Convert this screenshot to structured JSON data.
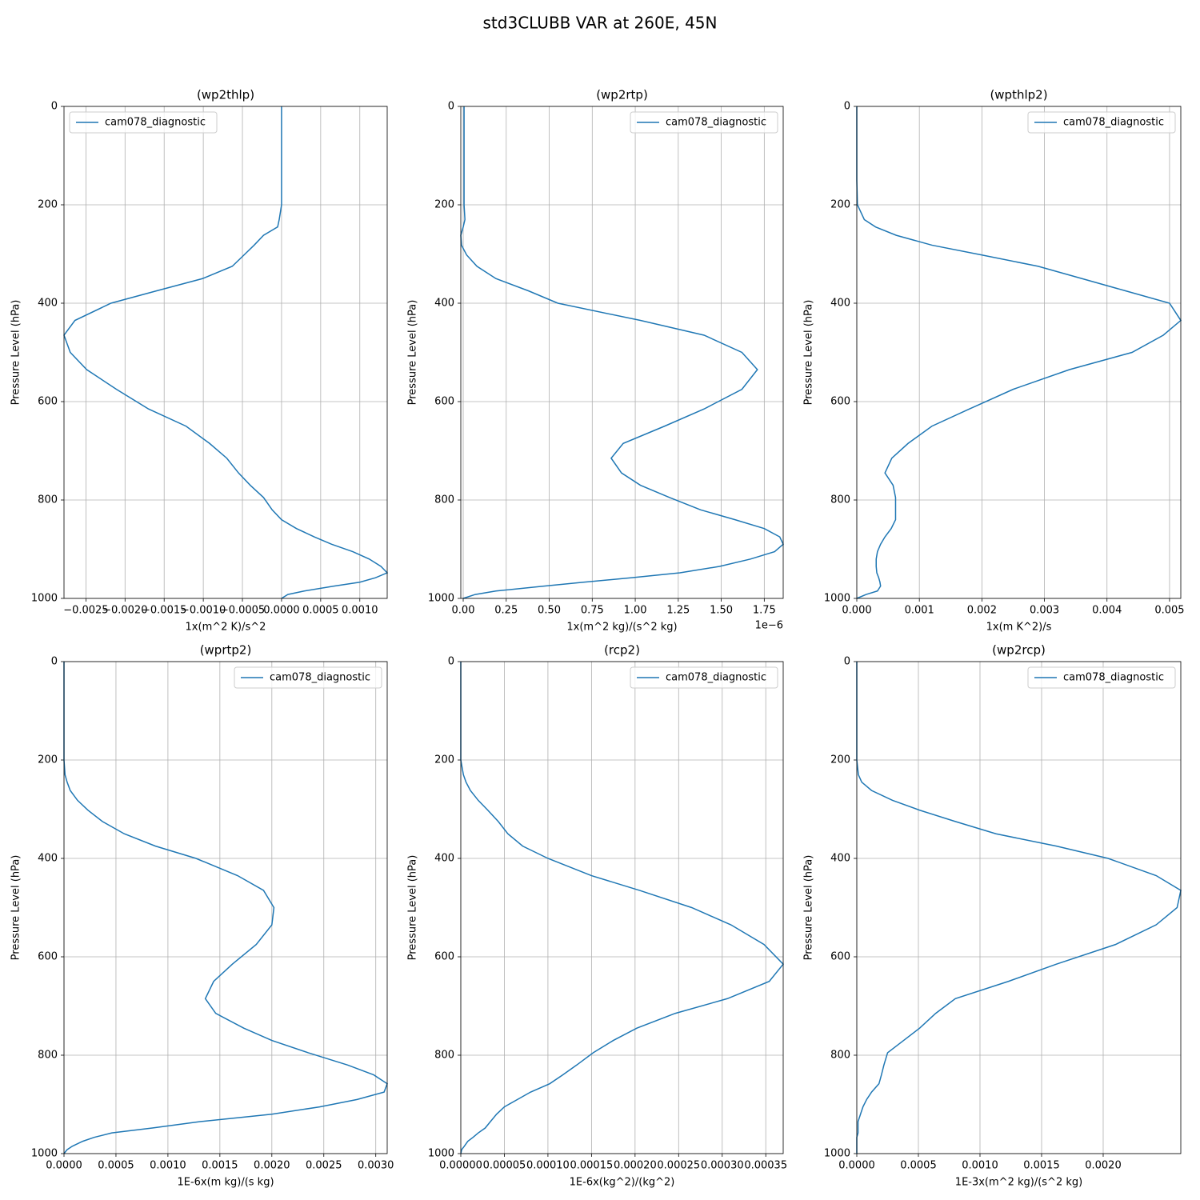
{
  "title": "std3CLUBB VAR at 260E, 45N",
  "chart_data": [
    {
      "type": "line",
      "title": "(wp2thlp)",
      "xlabel": "1x(m^2 K)/s^2",
      "ylabel": "Pressure Level (hPa)",
      "y": [
        0,
        50,
        100,
        150,
        200,
        230,
        245,
        262,
        282,
        302,
        325,
        350,
        375,
        400,
        435,
        465,
        500,
        535,
        575,
        615,
        650,
        685,
        715,
        745,
        770,
        795,
        820,
        840,
        858,
        875,
        890,
        905,
        920,
        935,
        948,
        958,
        967,
        975,
        985,
        992,
        1000
      ],
      "ylim": [
        1000,
        0
      ],
      "yticks": [
        0,
        200,
        400,
        600,
        800,
        1000
      ],
      "xlim": [
        -0.00278,
        0.00135
      ],
      "xticks": [
        {
          "value": -0.0025,
          "label": "−0.0025"
        },
        {
          "value": -0.002,
          "label": "−0.0020"
        },
        {
          "value": -0.0015,
          "label": "−0.0015"
        },
        {
          "value": -0.001,
          "label": "−0.0010"
        },
        {
          "value": -0.0005,
          "label": "−0.0005"
        },
        {
          "value": 0,
          "label": "0.0000"
        },
        0.0005,
        {
          "value": 0.001,
          "label": "0.0010"
        }
      ],
      "grid": true,
      "legend": "upper left",
      "series": [
        {
          "name": "cam078_diagnostic",
          "color": "#1f77b4",
          "values": [
            0,
            0,
            0,
            0,
            0,
            -3e-05,
            -5e-05,
            -0.00023,
            -0.00035,
            -0.00048,
            -0.00063,
            -0.00101,
            -0.0016,
            -0.00218,
            -0.00264,
            -0.00278,
            -0.0027,
            -0.00249,
            -0.00211,
            -0.0017,
            -0.00122,
            -0.00092,
            -0.0007,
            -0.00055,
            -0.0004,
            -0.00023,
            -0.00012,
            0,
            0.00019,
            0.00042,
            0.00064,
            0.00091,
            0.00112,
            0.00127,
            0.00135,
            0.0012,
            0.001,
            0.00067,
            0.00029,
            8e-05,
            0
          ]
        }
      ]
    },
    {
      "type": "line",
      "title": "(wp2rtp)",
      "xlabel": "1x(m^2 kg)/(s^2 kg)",
      "ylabel": "Pressure Level (hPa)",
      "offset_text": "1e−6",
      "y": [
        0,
        50,
        100,
        150,
        200,
        230,
        245,
        262,
        282,
        302,
        325,
        350,
        375,
        400,
        435,
        465,
        500,
        535,
        575,
        615,
        650,
        685,
        715,
        745,
        770,
        795,
        820,
        840,
        858,
        875,
        890,
        905,
        920,
        935,
        948,
        958,
        967,
        975,
        985,
        992,
        1000
      ],
      "ylim": [
        1000,
        0
      ],
      "yticks": [
        0,
        200,
        400,
        600,
        800,
        1000
      ],
      "xlim": [
        -0.014,
        1.86
      ],
      "xticks": [
        {
          "value": 0,
          "label": "0.00"
        },
        0.25,
        {
          "value": 0.5,
          "label": "0.50"
        },
        0.75,
        {
          "value": 1,
          "label": "1.00"
        },
        1.25,
        {
          "value": 1.5,
          "label": "1.50"
        },
        1.75
      ],
      "grid": true,
      "legend": "upper right",
      "series": [
        {
          "name": "cam078_diagnostic",
          "color": "#1f77b4",
          "values": [
            0.005,
            0.005,
            0.005,
            0.005,
            0.005,
            0.01,
            0,
            -0.014,
            -0.01,
            0.02,
            0.08,
            0.19,
            0.38,
            0.55,
            1.03,
            1.4,
            1.62,
            1.71,
            1.62,
            1.4,
            1.17,
            0.93,
            0.86,
            0.92,
            1.03,
            1.2,
            1.38,
            1.58,
            1.75,
            1.84,
            1.86,
            1.81,
            1.67,
            1.49,
            1.26,
            0.98,
            0.7,
            0.47,
            0.19,
            0.07,
            0
          ]
        }
      ]
    },
    {
      "type": "line",
      "title": "(wpthlp2)",
      "xlabel": "1x(m K^2)/s",
      "ylabel": "Pressure Level (hPa)",
      "y": [
        0,
        50,
        100,
        150,
        200,
        230,
        245,
        262,
        282,
        302,
        325,
        350,
        375,
        400,
        435,
        465,
        500,
        535,
        575,
        615,
        650,
        685,
        715,
        745,
        770,
        795,
        820,
        840,
        858,
        875,
        890,
        905,
        920,
        935,
        948,
        958,
        967,
        975,
        985,
        992,
        1000
      ],
      "ylim": [
        1000,
        0
      ],
      "yticks": [
        0,
        200,
        400,
        600,
        800,
        1000
      ],
      "xlim": [
        0,
        0.00518
      ],
      "xticks": [
        {
          "value": 0,
          "label": "0.000"
        },
        0.001,
        0.002,
        0.003,
        0.004,
        0.005
      ],
      "grid": true,
      "legend": "upper right",
      "series": [
        {
          "name": "cam078_diagnostic",
          "color": "#1f77b4",
          "values": [
            0,
            0,
            0,
            0,
            1e-05,
            0.00012,
            0.0003,
            0.00063,
            0.0012,
            0.002,
            0.0029,
            0.0036,
            0.0043,
            0.005,
            0.00518,
            0.0049,
            0.0044,
            0.0034,
            0.0025,
            0.0018,
            0.0012,
            0.00082,
            0.00056,
            0.00045,
            0.00058,
            0.00062,
            0.00062,
            0.00062,
            0.00055,
            0.00045,
            0.00038,
            0.00033,
            0.00031,
            0.00031,
            0.00032,
            0.00035,
            0.00037,
            0.00038,
            0.00033,
            0.00015,
            0
          ]
        }
      ]
    },
    {
      "type": "line",
      "title": "(wprtp2)",
      "xlabel": "1E-6x(m kg)/(s kg)",
      "ylabel": "Pressure Level (hPa)",
      "y": [
        0,
        50,
        100,
        150,
        200,
        230,
        245,
        262,
        282,
        302,
        325,
        350,
        375,
        400,
        435,
        465,
        500,
        535,
        575,
        615,
        650,
        685,
        715,
        745,
        770,
        795,
        820,
        840,
        858,
        875,
        890,
        905,
        920,
        935,
        948,
        958,
        967,
        975,
        985,
        992,
        1000
      ],
      "ylim": [
        1000,
        0
      ],
      "yticks": [
        0,
        200,
        400,
        600,
        800,
        1000
      ],
      "xlim": [
        0,
        0.00311
      ],
      "xticks": [
        {
          "value": 0,
          "label": "0.0000"
        },
        0.0005,
        {
          "value": 0.001,
          "label": "0.0010"
        },
        0.0015,
        {
          "value": 0.002,
          "label": "0.0020"
        },
        0.0025,
        {
          "value": 0.003,
          "label": "0.0030"
        }
      ],
      "grid": true,
      "legend": "upper right",
      "series": [
        {
          "name": "cam078_diagnostic",
          "color": "#1f77b4",
          "values": [
            0,
            0,
            0,
            0,
            0,
            1e-05,
            3e-05,
            6e-05,
            0.00013,
            0.00023,
            0.00037,
            0.00058,
            0.00088,
            0.00127,
            0.00167,
            0.00192,
            0.00202,
            0.002,
            0.00185,
            0.00162,
            0.00144,
            0.00136,
            0.00146,
            0.00173,
            0.002,
            0.00235,
            0.00273,
            0.00298,
            0.00311,
            0.00308,
            0.00282,
            0.00246,
            0.002,
            0.00131,
            0.00085,
            0.00046,
            0.00029,
            0.00018,
            8e-05,
            3e-05,
            0
          ]
        }
      ]
    },
    {
      "type": "line",
      "title": "(rcp2)",
      "xlabel": "1E-6x(kg^2)/(kg^2)",
      "ylabel": "Pressure Level (hPa)",
      "y": [
        0,
        50,
        100,
        150,
        200,
        230,
        245,
        262,
        282,
        302,
        325,
        350,
        375,
        400,
        435,
        465,
        500,
        535,
        575,
        615,
        650,
        685,
        715,
        745,
        770,
        795,
        820,
        840,
        858,
        875,
        890,
        905,
        920,
        935,
        948,
        958,
        967,
        975,
        985,
        992,
        1000
      ],
      "ylim": [
        1000,
        0
      ],
      "yticks": [
        0,
        200,
        400,
        600,
        800,
        1000
      ],
      "xlim": [
        0,
        0.00037
      ],
      "xticks": [
        {
          "value": 0,
          "label": "0.00000"
        },
        {
          "value": 5e-05,
          "label": "0.00005"
        },
        {
          "value": 0.0001,
          "label": "0.00010"
        },
        {
          "value": 0.00015,
          "label": "0.00015"
        },
        {
          "value": 0.0002,
          "label": "0.00020"
        },
        {
          "value": 0.00025,
          "label": "0.00025"
        },
        {
          "value": 0.0003,
          "label": "0.00030"
        },
        {
          "value": 0.00035,
          "label": "0.00035"
        }
      ],
      "grid": true,
      "legend": "upper right",
      "series": [
        {
          "name": "cam078_diagnostic",
          "color": "#1f77b4",
          "values": [
            0,
            0,
            0,
            0,
            0,
            3e-06,
            6e-06,
            1.1e-05,
            2e-05,
            3.1e-05,
            4.3e-05,
            5.4e-05,
            7.1e-05,
            0.0001,
            0.00015,
            0.000205,
            0.000265,
            0.00031,
            0.000348,
            0.00037,
            0.000354,
            0.000306,
            0.000246,
            0.000202,
            0.000175,
            0.000152,
            0.000133,
            0.000117,
            0.000102,
            8e-05,
            6.5e-05,
            5e-05,
            4.1e-05,
            3.4e-05,
            2.8e-05,
            2e-05,
            1.4e-05,
            8e-06,
            4e-06,
            1e-06,
            0
          ]
        }
      ]
    },
    {
      "type": "line",
      "title": "(wp2rcp)",
      "xlabel": "1E-3x(m^2 kg)/(s^2 kg)",
      "ylabel": "Pressure Level (hPa)",
      "y": [
        0,
        50,
        100,
        150,
        200,
        230,
        245,
        262,
        282,
        302,
        325,
        350,
        375,
        400,
        435,
        465,
        500,
        535,
        575,
        615,
        650,
        685,
        715,
        745,
        770,
        795,
        820,
        840,
        858,
        875,
        890,
        905,
        920,
        935,
        948,
        958,
        967,
        975,
        985,
        992,
        1000
      ],
      "ylim": [
        1000,
        0
      ],
      "yticks": [
        0,
        200,
        400,
        600,
        800,
        1000
      ],
      "xlim": [
        0,
        0.00263
      ],
      "xticks": [
        {
          "value": 0,
          "label": "0.0000"
        },
        0.0005,
        {
          "value": 0.001,
          "label": "0.0010"
        },
        0.0015,
        {
          "value": 0.002,
          "label": "0.0020"
        }
      ],
      "grid": true,
      "legend": "upper right",
      "series": [
        {
          "name": "cam078_diagnostic",
          "color": "#1f77b4",
          "values": [
            0,
            0,
            0,
            0,
            0,
            1.3e-05,
            4e-05,
            0.00012,
            0.00029,
            0.00051,
            0.0008,
            0.00113,
            0.00162,
            0.00204,
            0.00243,
            0.00263,
            0.0026,
            0.00243,
            0.0021,
            0.00162,
            0.00123,
            0.0008,
            0.00064,
            0.00051,
            0.00038,
            0.00025,
            0.00022,
            0.0002,
            0.00018,
            0.00012,
            8e-05,
            5e-05,
            3e-05,
            1e-05,
            1e-05,
            1e-05,
            0,
            0,
            0,
            0,
            0
          ]
        }
      ]
    }
  ]
}
